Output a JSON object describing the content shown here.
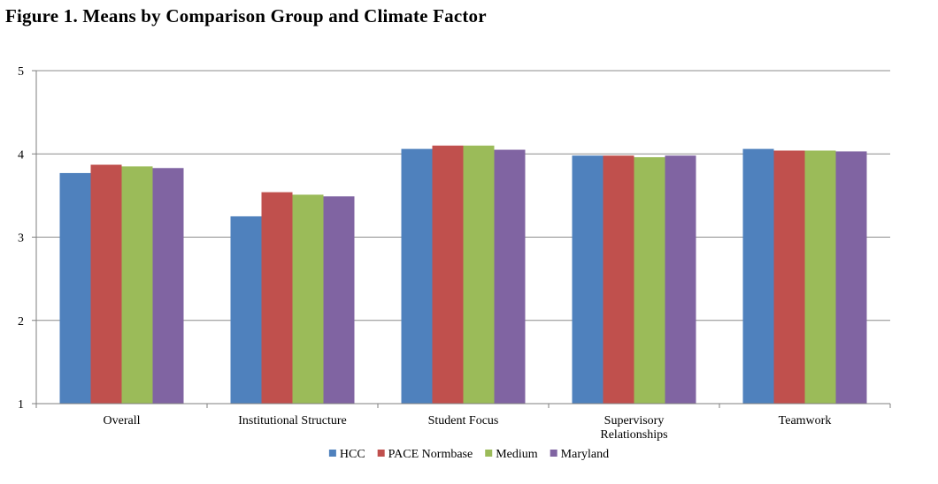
{
  "title": "Figure 1. Means by Comparison Group and Climate Factor",
  "chart_data": {
    "type": "bar",
    "title": "Figure 1. Means by Comparison Group and Climate Factor",
    "categories": [
      [
        "Overall"
      ],
      [
        "Institutional Structure"
      ],
      [
        "Student Focus"
      ],
      [
        "Supervisory",
        "Relationships"
      ],
      [
        "Teamwork"
      ]
    ],
    "series": [
      {
        "name": "HCC",
        "color": "#4F81BD",
        "values": [
          3.77,
          3.25,
          4.06,
          3.98,
          4.06
        ]
      },
      {
        "name": "PACE Normbase",
        "color": "#C0504D",
        "values": [
          3.87,
          3.54,
          4.1,
          3.98,
          4.04
        ]
      },
      {
        "name": "Medium",
        "color": "#9BBB59",
        "values": [
          3.85,
          3.51,
          4.1,
          3.96,
          4.04
        ]
      },
      {
        "name": "Maryland",
        "color": "#8064A2",
        "values": [
          3.83,
          3.49,
          4.05,
          3.98,
          4.03
        ]
      }
    ],
    "ylim": [
      1,
      5
    ],
    "yticks": [
      "1",
      "2",
      "3",
      "4",
      "5"
    ],
    "xlabel": "",
    "ylabel": "",
    "grid": true,
    "legend": "bottom"
  }
}
